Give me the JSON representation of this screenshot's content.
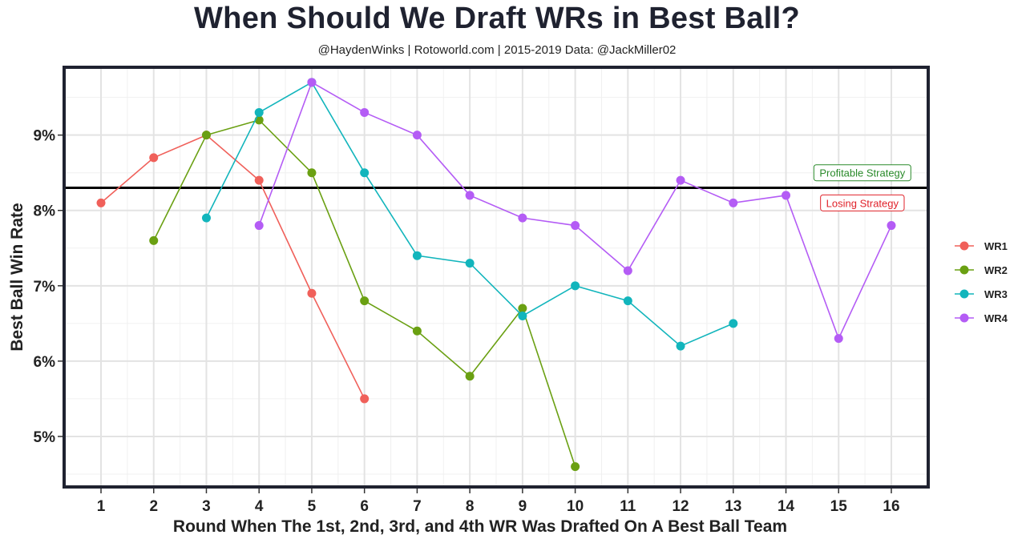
{
  "header": {
    "title": "When Should We Draft WRs in Best Ball?",
    "subtitle": "@HaydenWinks | Rotoworld.com | 2015-2019 Data: @JackMiller02"
  },
  "chart_data": {
    "type": "line",
    "title": "When Should We Draft WRs in Best Ball?",
    "subtitle": "@HaydenWinks | Rotoworld.com | 2015-2019 Data: @JackMiller02",
    "xlabel": "Round When The 1st, 2nd, 3rd, and 4th WR Was Drafted On A Best Ball Team",
    "ylabel": "Best Ball Win Rate",
    "x_ticks": [
      1,
      2,
      3,
      4,
      5,
      6,
      7,
      8,
      9,
      10,
      11,
      12,
      13,
      14,
      15,
      16
    ],
    "y_ticks": [
      5,
      6,
      7,
      8,
      9
    ],
    "y_tick_labels": [
      "5%",
      "6%",
      "7%",
      "8%",
      "9%"
    ],
    "xlim": [
      0.3,
      16.7
    ],
    "ylim": [
      4.33,
      9.9
    ],
    "grid": true,
    "legend_position": "right",
    "reference_line": {
      "y": 8.3
    },
    "annotations": [
      {
        "text": "Profitable Strategy",
        "x": 15.45,
        "y": 8.5,
        "color": "#2a8a2a"
      },
      {
        "text": "Losing Strategy",
        "x": 15.45,
        "y": 8.1,
        "color": "#e0222a"
      }
    ],
    "series": [
      {
        "name": "WR1",
        "color": "#f0605a",
        "x": [
          1,
          2,
          3,
          4,
          5,
          6
        ],
        "y": [
          8.1,
          8.7,
          9.0,
          8.4,
          6.9,
          5.5
        ]
      },
      {
        "name": "WR2",
        "color": "#6aa012",
        "x": [
          2,
          3,
          4,
          5,
          6,
          7,
          8,
          9,
          10
        ],
        "y": [
          7.6,
          9.0,
          9.2,
          8.5,
          6.8,
          6.4,
          5.8,
          6.7,
          4.6
        ]
      },
      {
        "name": "WR3",
        "color": "#12b5bc",
        "x": [
          3,
          4,
          5,
          6,
          7,
          8,
          9,
          10,
          11,
          12,
          13
        ],
        "y": [
          7.9,
          9.3,
          9.7,
          8.5,
          7.4,
          7.3,
          6.6,
          7.0,
          6.8,
          6.2,
          6.5
        ]
      },
      {
        "name": "WR4",
        "color": "#b45cf5",
        "x": [
          4,
          5,
          6,
          7,
          8,
          9,
          10,
          11,
          12,
          13,
          14,
          15,
          16
        ],
        "y": [
          7.8,
          9.7,
          9.3,
          9.0,
          8.2,
          7.9,
          7.8,
          7.2,
          8.4,
          8.1,
          8.2,
          6.3,
          7.8
        ]
      }
    ]
  }
}
